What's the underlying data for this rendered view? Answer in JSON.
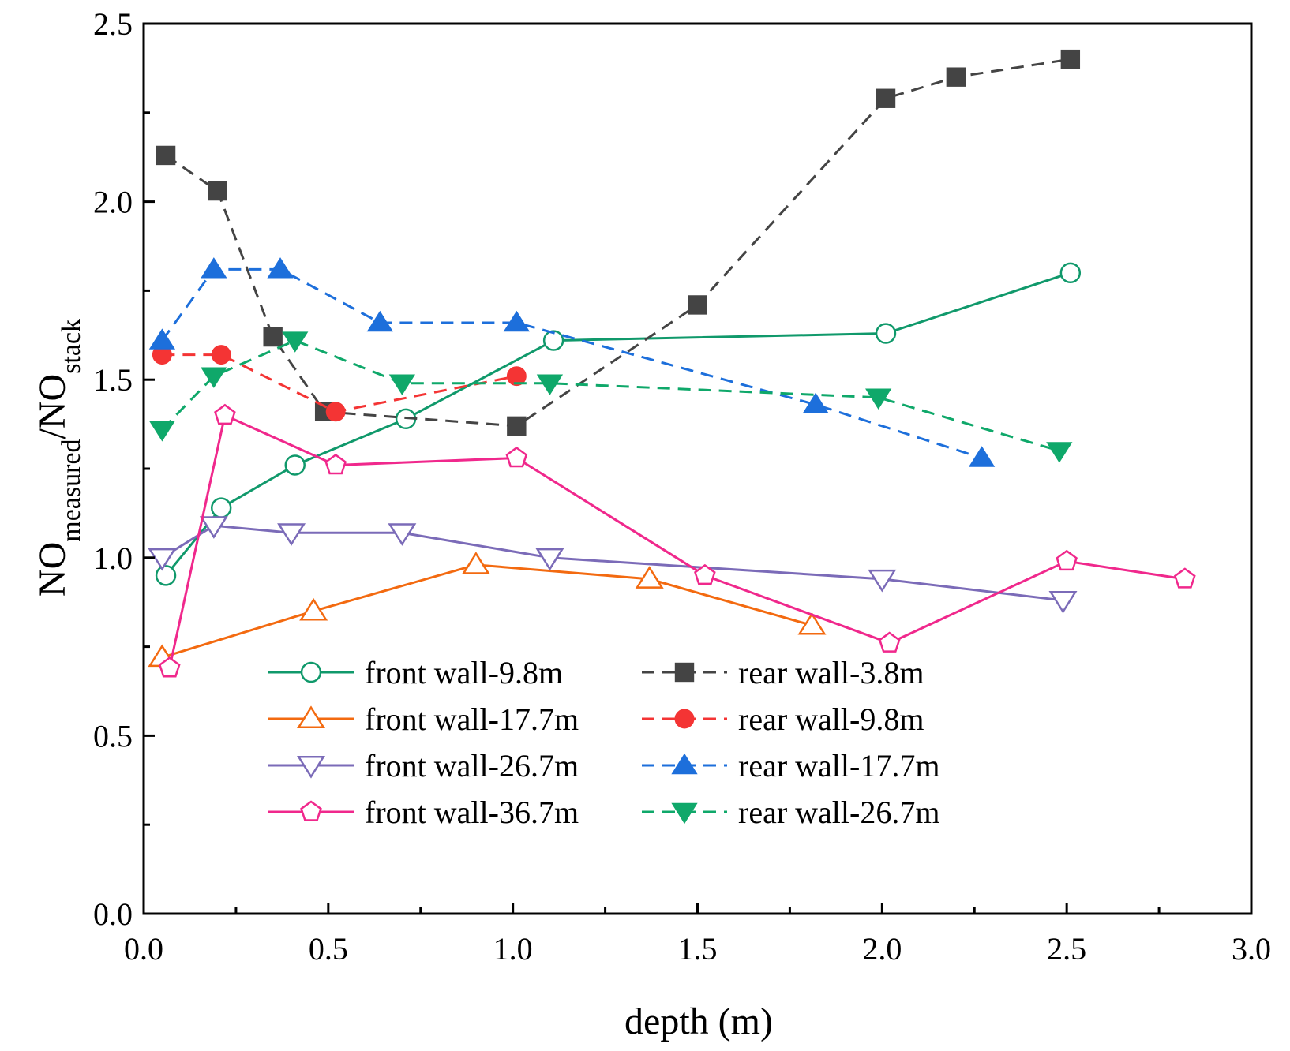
{
  "chart_data": {
    "type": "line",
    "title": "",
    "xlabel": "depth (m)",
    "ylabel_main": "NO",
    "ylabel_sub1": "measured",
    "ylabel_mid": "/NO",
    "ylabel_sub2": "stack",
    "xlim": [
      0.0,
      3.0
    ],
    "ylim": [
      0.0,
      2.5
    ],
    "xticks": [
      0.0,
      0.5,
      1.0,
      1.5,
      2.0,
      2.5,
      3.0
    ],
    "xtick_labels": [
      "0.0",
      "0.5",
      "1.0",
      "1.5",
      "2.0",
      "2.5",
      "3.0"
    ],
    "yticks": [
      0.0,
      0.5,
      1.0,
      1.5,
      2.0,
      2.5
    ],
    "ytick_labels": [
      "0.0",
      "0.5",
      "1.0",
      "1.5",
      "2.0",
      "2.5"
    ],
    "grid": false,
    "legend_position": "bottom-left, two columns",
    "series": [
      {
        "name": "front wall-9.8m",
        "color": "#10996b",
        "dashed": false,
        "marker": "circle",
        "filled": false,
        "x": [
          0.06,
          0.21,
          0.41,
          0.71,
          1.11,
          2.01,
          2.51
        ],
        "y": [
          0.95,
          1.14,
          1.26,
          1.39,
          1.61,
          1.63,
          1.8
        ]
      },
      {
        "name": "front wall-17.7m",
        "color": "#f36a10",
        "dashed": false,
        "marker": "triangle-up",
        "filled": false,
        "x": [
          0.05,
          0.46,
          0.9,
          1.37,
          1.81
        ],
        "y": [
          0.72,
          0.85,
          0.98,
          0.94,
          0.81
        ]
      },
      {
        "name": "front wall-26.7m",
        "color": "#7b6bb8",
        "dashed": false,
        "marker": "triangle-down",
        "filled": false,
        "x": [
          0.05,
          0.19,
          0.4,
          0.7,
          1.1,
          2.0,
          2.49
        ],
        "y": [
          1.0,
          1.09,
          1.07,
          1.07,
          1.0,
          0.94,
          0.88
        ]
      },
      {
        "name": "front wall-36.7m",
        "color": "#f0288c",
        "dashed": false,
        "marker": "pentagon",
        "filled": false,
        "x": [
          0.07,
          0.22,
          0.52,
          1.01,
          1.52,
          2.02,
          2.5,
          2.82
        ],
        "y": [
          0.69,
          1.4,
          1.26,
          1.28,
          0.95,
          0.76,
          0.99,
          0.94
        ]
      },
      {
        "name": "rear wall-3.8m",
        "color": "#444444",
        "dashed": true,
        "marker": "square",
        "filled": true,
        "x": [
          0.06,
          0.2,
          0.35,
          0.49,
          1.01,
          1.5,
          2.01,
          2.2,
          2.51
        ],
        "y": [
          2.13,
          2.03,
          1.62,
          1.41,
          1.37,
          1.71,
          2.29,
          2.35,
          2.4
        ]
      },
      {
        "name": "rear wall-9.8m",
        "color": "#f43434",
        "dashed": true,
        "marker": "circle",
        "filled": true,
        "x": [
          0.05,
          0.21,
          0.52,
          1.01
        ],
        "y": [
          1.57,
          1.57,
          1.41,
          1.51
        ]
      },
      {
        "name": "rear wall-17.7m",
        "color": "#1d6fdb",
        "dashed": true,
        "marker": "triangle-up",
        "filled": true,
        "x": [
          0.05,
          0.19,
          0.37,
          0.64,
          1.01,
          1.82,
          2.27
        ],
        "y": [
          1.61,
          1.81,
          1.81,
          1.66,
          1.66,
          1.43,
          1.28
        ]
      },
      {
        "name": "rear wall-26.7m",
        "color": "#0fa86a",
        "dashed": true,
        "marker": "triangle-down",
        "filled": true,
        "x": [
          0.05,
          0.19,
          0.41,
          0.7,
          1.1,
          1.99,
          2.48
        ],
        "y": [
          1.36,
          1.51,
          1.61,
          1.49,
          1.49,
          1.45,
          1.3
        ]
      }
    ]
  }
}
